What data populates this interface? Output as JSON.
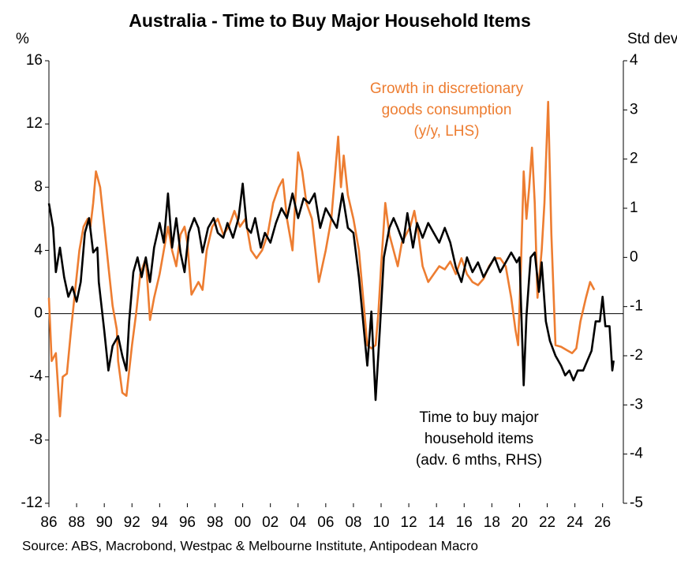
{
  "chart_data": {
    "type": "line",
    "title": "Australia - Time to Buy Major Household Items",
    "y_label": "%",
    "y2_label": "Std dev",
    "source": "Source: ABS, Macrobond, Westpac & Melbourne Institute, Antipodean Macro",
    "annotations": [
      {
        "lines": [
          "Growth in discretionary",
          "goods consumption",
          "(y/y, LHS)"
        ],
        "color": "#ed7d31"
      },
      {
        "lines": [
          "Time to buy major",
          "household items",
          "(adv. 6 mths, RHS)"
        ],
        "color": "#000000"
      }
    ],
    "xlim": [
      1986,
      2027.5
    ],
    "xticks": [
      {
        "value": 1986,
        "label": "86"
      },
      {
        "value": 1988,
        "label": "88"
      },
      {
        "value": 1990,
        "label": "90"
      },
      {
        "value": 1992,
        "label": "92"
      },
      {
        "value": 1994,
        "label": "94"
      },
      {
        "value": 1996,
        "label": "96"
      },
      {
        "value": 1998,
        "label": "98"
      },
      {
        "value": 2000,
        "label": "00"
      },
      {
        "value": 2002,
        "label": "02"
      },
      {
        "value": 2004,
        "label": "04"
      },
      {
        "value": 2006,
        "label": "06"
      },
      {
        "value": 2008,
        "label": "08"
      },
      {
        "value": 2010,
        "label": "10"
      },
      {
        "value": 2012,
        "label": "12"
      },
      {
        "value": 2014,
        "label": "14"
      },
      {
        "value": 2016,
        "label": "16"
      },
      {
        "value": 2018,
        "label": "18"
      },
      {
        "value": 2020,
        "label": "20"
      },
      {
        "value": 2022,
        "label": "22"
      },
      {
        "value": 2024,
        "label": "24"
      },
      {
        "value": 2026,
        "label": "26"
      }
    ],
    "ylim": [
      -12,
      16
    ],
    "yticks": [
      -12,
      -8,
      -4,
      0,
      4,
      8,
      12,
      16
    ],
    "y2lim": [
      -5,
      4
    ],
    "y2ticks": [
      -5,
      -4,
      -3,
      -2,
      -1,
      0,
      1,
      2,
      3,
      4
    ],
    "series": [
      {
        "name": "Growth in discretionary goods consumption",
        "color": "#ed7d31",
        "x": [
          1986.0,
          1986.2,
          1986.5,
          1986.8,
          1987.0,
          1987.3,
          1987.6,
          1987.9,
          1988.2,
          1988.5,
          1988.8,
          1989.0,
          1989.2,
          1989.4,
          1989.7,
          1990.0,
          1990.3,
          1990.6,
          1990.9,
          1991.0,
          1991.3,
          1991.6,
          1992.0,
          1992.3,
          1992.6,
          1993.0,
          1993.3,
          1993.6,
          1994.0,
          1994.3,
          1994.6,
          1994.9,
          1995.2,
          1995.5,
          1995.8,
          1996.0,
          1996.3,
          1996.8,
          1997.1,
          1997.4,
          1997.8,
          1998.2,
          1998.6,
          1999.0,
          1999.4,
          1999.8,
          2000.2,
          2000.6,
          2001.0,
          2001.4,
          2001.8,
          2002.2,
          2002.6,
          2002.9,
          2003.2,
          2003.6,
          2004.0,
          2004.3,
          2004.6,
          2005.0,
          2005.5,
          2006.0,
          2006.4,
          2006.9,
          2007.1,
          2007.3,
          2007.6,
          2008.0,
          2008.4,
          2008.8,
          2009.0,
          2009.3,
          2009.6,
          2009.8,
          2010.0,
          2010.3,
          2010.6,
          2010.9,
          2011.2,
          2011.5,
          2011.8,
          2012.1,
          2012.4,
          2012.7,
          2013.0,
          2013.4,
          2013.8,
          2014.2,
          2014.6,
          2015.0,
          2015.4,
          2015.8,
          2016.2,
          2016.6,
          2017.0,
          2017.4,
          2017.8,
          2018.2,
          2018.6,
          2019.0,
          2019.4,
          2019.7,
          2019.9,
          2020.1,
          2020.3,
          2020.5,
          2020.7,
          2020.9,
          2021.1,
          2021.3,
          2021.6,
          2021.8,
          2022.07,
          2022.3,
          2022.6,
          2023.0,
          2023.4,
          2023.8,
          2024.1,
          2024.4,
          2024.8,
          2025.1,
          2025.4
        ],
        "values": [
          1,
          -3,
          -2.5,
          -6.5,
          -4,
          -3.8,
          -1,
          1.5,
          4,
          5.5,
          6,
          5.5,
          7,
          9,
          8,
          5.5,
          3,
          0.5,
          -1,
          -3,
          -5,
          -5.2,
          -2,
          0,
          2.5,
          3.5,
          -0.4,
          1,
          2.5,
          4,
          5.5,
          4,
          3,
          5,
          5.5,
          4.5,
          1.2,
          2,
          1.5,
          4,
          5.5,
          6,
          5,
          5.5,
          6.5,
          5.5,
          6,
          4,
          3.5,
          4,
          5,
          7,
          8,
          8.5,
          6,
          4,
          10.2,
          9,
          7,
          6,
          2,
          4,
          6,
          11.2,
          8,
          10,
          7.5,
          6,
          4,
          0,
          -2,
          -2.2,
          -2,
          0,
          3,
          7,
          5,
          4,
          3,
          4.5,
          5,
          5.5,
          6.5,
          5,
          3,
          2,
          2.5,
          3,
          2.8,
          3.3,
          2.5,
          3.5,
          2.5,
          2,
          1.8,
          2.2,
          3,
          3.5,
          3.5,
          3,
          1,
          -1,
          -2,
          3,
          9,
          6,
          8,
          10.5,
          7,
          1,
          4,
          7,
          13.4,
          5,
          -2,
          -2.1,
          -2.3,
          -2.5,
          -2.2,
          -0.5,
          1,
          2,
          1.5
        ]
      },
      {
        "name": "Time to buy major household items",
        "color": "#000000",
        "axis": "y2",
        "x": [
          1986.0,
          1986.3,
          1986.5,
          1986.8,
          1987.1,
          1987.4,
          1987.7,
          1988.0,
          1988.3,
          1988.6,
          1988.9,
          1989.2,
          1989.5,
          1989.6,
          1990.0,
          1990.3,
          1990.6,
          1991.0,
          1991.3,
          1991.6,
          1991.8,
          1992.1,
          1992.4,
          1992.7,
          1993.0,
          1993.3,
          1993.6,
          1994.0,
          1994.3,
          1994.6,
          1994.9,
          1995.2,
          1995.5,
          1995.8,
          1996.1,
          1996.5,
          1996.8,
          1997.1,
          1997.5,
          1997.9,
          1998.2,
          1998.6,
          1998.9,
          1999.3,
          1999.7,
          2000.0,
          2000.3,
          2000.6,
          2000.9,
          2001.3,
          2001.6,
          2002.0,
          2002.4,
          2002.8,
          2003.2,
          2003.6,
          2004.0,
          2004.4,
          2004.8,
          2005.2,
          2005.6,
          2006.0,
          2006.4,
          2006.8,
          2007.2,
          2007.6,
          2008.0,
          2008.4,
          2008.7,
          2009.0,
          2009.3,
          2009.6,
          2009.9,
          2010.2,
          2010.6,
          2010.9,
          2011.2,
          2011.6,
          2011.9,
          2012.3,
          2012.6,
          2013.0,
          2013.4,
          2013.8,
          2014.2,
          2014.6,
          2015.0,
          2015.4,
          2015.8,
          2016.2,
          2016.6,
          2017.0,
          2017.4,
          2017.8,
          2018.2,
          2018.6,
          2019.0,
          2019.4,
          2019.8,
          2020.0,
          2020.3,
          2020.5,
          2020.8,
          2021.1,
          2021.4,
          2021.6,
          2021.9,
          2022.2,
          2022.6,
          2023.0,
          2023.3,
          2023.6,
          2023.9,
          2024.2,
          2024.6,
          2024.9,
          2025.2,
          2025.5,
          2025.8,
          2026.0,
          2026.2,
          2026.5,
          2026.7,
          2026.8
        ],
        "values": [
          1.1,
          0.6,
          -0.3,
          0.2,
          -0.4,
          -0.8,
          -0.6,
          -0.9,
          -0.5,
          0.5,
          0.8,
          0.1,
          0.2,
          -0.5,
          -1.5,
          -2.3,
          -1.8,
          -1.6,
          -2,
          -2.3,
          -1.3,
          -0.3,
          0,
          -0.4,
          0,
          -0.5,
          0.2,
          0.7,
          0.3,
          1.3,
          0.2,
          0.8,
          0.1,
          -0.3,
          0.5,
          0.8,
          0.6,
          0.1,
          0.6,
          0.8,
          0.5,
          0.4,
          0.7,
          0.4,
          0.8,
          1.5,
          0.6,
          0.5,
          0.8,
          0.2,
          0.5,
          0.3,
          0.7,
          1,
          0.8,
          1.3,
          0.8,
          1.2,
          1.1,
          1.3,
          0.6,
          1,
          0.8,
          0.6,
          1.3,
          0.6,
          0.5,
          -0.4,
          -1.3,
          -2.2,
          -1.1,
          -2.9,
          -1.5,
          0,
          0.6,
          0.8,
          0.6,
          0.3,
          0.9,
          0.2,
          0.7,
          0.4,
          0.7,
          0.5,
          0.3,
          0.6,
          0.3,
          -0.2,
          -0.5,
          0,
          -0.3,
          -0.1,
          -0.4,
          -0.2,
          0,
          -0.3,
          -0.1,
          0.1,
          -0.1,
          0,
          -2.6,
          -1.2,
          0,
          0.1,
          -0.7,
          -0.1,
          -1.3,
          -1.7,
          -2,
          -2.2,
          -2.4,
          -2.3,
          -2.5,
          -2.3,
          -2.3,
          -2.1,
          -1.9,
          -1.3,
          -1.3,
          -0.8,
          -1.4,
          -1.4,
          -2.3,
          -2.1
        ]
      }
    ]
  }
}
